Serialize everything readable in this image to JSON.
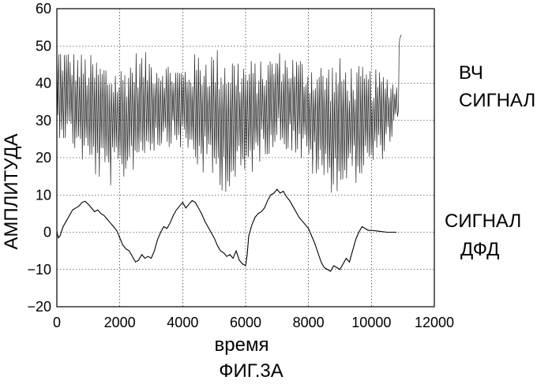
{
  "figure": {
    "caption": "ФИГ.3А"
  },
  "chart_data": {
    "type": "line",
    "title": "",
    "xlabel": "время",
    "ylabel": "АМПЛИТУДА",
    "xlim": [
      0,
      12000
    ],
    "ylim": [
      -20,
      60
    ],
    "x_ticks": [
      0,
      2000,
      4000,
      6000,
      8000,
      10000,
      12000
    ],
    "y_ticks": [
      -20,
      -10,
      0,
      10,
      20,
      30,
      40,
      50,
      60
    ],
    "grid": true,
    "annotations": [
      {
        "id": "rf",
        "lines": [
          "ВЧ",
          "СИГНАЛ"
        ]
      },
      {
        "id": "pd",
        "lines": [
          "СИГНАЛ",
          "ДФД"
        ]
      }
    ],
    "series": [
      {
        "id": "rf",
        "style": "dense-oscillation",
        "x_start": 0,
        "x_end": 10850,
        "x_step": 30,
        "x": [
          0,
          500,
          1000,
          1500,
          2000,
          2500,
          3000,
          3500,
          4000,
          4500,
          5000,
          5500,
          6000,
          6500,
          7000,
          7500,
          8000,
          8500,
          9000,
          9500,
          10000,
          10500,
          10850
        ],
        "upper": [
          51,
          49,
          48,
          47,
          45,
          49,
          48,
          46,
          45,
          49,
          50,
          49,
          47,
          46,
          49,
          48,
          47,
          46,
          47,
          45,
          44,
          43,
          40
        ],
        "lower": [
          26,
          22,
          16,
          12,
          12,
          17,
          21,
          23,
          22,
          16,
          12,
          10,
          13,
          19,
          23,
          21,
          16,
          11,
          10,
          13,
          16,
          21,
          30
        ],
        "tail": {
          "x": [
            10860,
            10880,
            10900,
            10950
          ],
          "y": [
            33,
            50,
            52,
            53
          ]
        }
      },
      {
        "id": "pd",
        "style": "wave",
        "x": [
          0,
          50,
          100,
          200,
          300,
          400,
          500,
          600,
          700,
          800,
          900,
          1000,
          1100,
          1200,
          1300,
          1400,
          1500,
          1600,
          1700,
          1800,
          1900,
          2000,
          2100,
          2200,
          2300,
          2400,
          2500,
          2600,
          2700,
          2800,
          2900,
          3000,
          3100,
          3200,
          3300,
          3400,
          3500,
          3600,
          3700,
          3800,
          3900,
          4000,
          4100,
          4200,
          4300,
          4400,
          4500,
          4600,
          4700,
          4800,
          4900,
          5000,
          5100,
          5200,
          5300,
          5400,
          5500,
          5600,
          5700,
          5800,
          5900,
          6000,
          6050,
          6100,
          6200,
          6300,
          6400,
          6500,
          6600,
          6700,
          6800,
          6900,
          7000,
          7100,
          7200,
          7300,
          7400,
          7500,
          7600,
          7700,
          7800,
          7900,
          8000,
          8100,
          8200,
          8300,
          8400,
          8500,
          8600,
          8700,
          8800,
          8900,
          9000,
          9100,
          9200,
          9300,
          9400,
          9500,
          9600,
          9700,
          9800,
          9900,
          10000,
          10200,
          10500,
          10800
        ],
        "y": [
          0,
          -1.5,
          -1,
          1.5,
          3,
          4.5,
          6,
          6.5,
          7,
          8,
          8.3,
          7.5,
          6.5,
          5.5,
          6,
          5,
          4.5,
          3.5,
          2.5,
          1.5,
          0.5,
          -1.5,
          -3.5,
          -4.5,
          -5,
          -6.5,
          -8,
          -7.5,
          -6,
          -7,
          -6.5,
          -7,
          -5,
          -2,
          0,
          1.5,
          1,
          2.5,
          4.5,
          6,
          7,
          8,
          6.5,
          7.5,
          8.5,
          8,
          6.5,
          5,
          3,
          1.5,
          0,
          -1.5,
          -3.5,
          -5,
          -5.5,
          -6.5,
          -6,
          -7,
          -5,
          -7.5,
          -8.5,
          -9,
          -6,
          -1,
          2,
          4,
          5,
          5.5,
          6.5,
          8.5,
          10,
          10.5,
          11.5,
          10.5,
          11,
          9.5,
          8.5,
          7,
          5.5,
          4,
          3,
          2,
          1,
          -1,
          -3,
          -5.5,
          -8,
          -9.5,
          -10,
          -10.5,
          -9,
          -9.5,
          -10,
          -8.5,
          -7,
          -8,
          -5,
          -2,
          0,
          1.5,
          1,
          0.5,
          0.5,
          0.3,
          0,
          0
        ]
      }
    ]
  }
}
